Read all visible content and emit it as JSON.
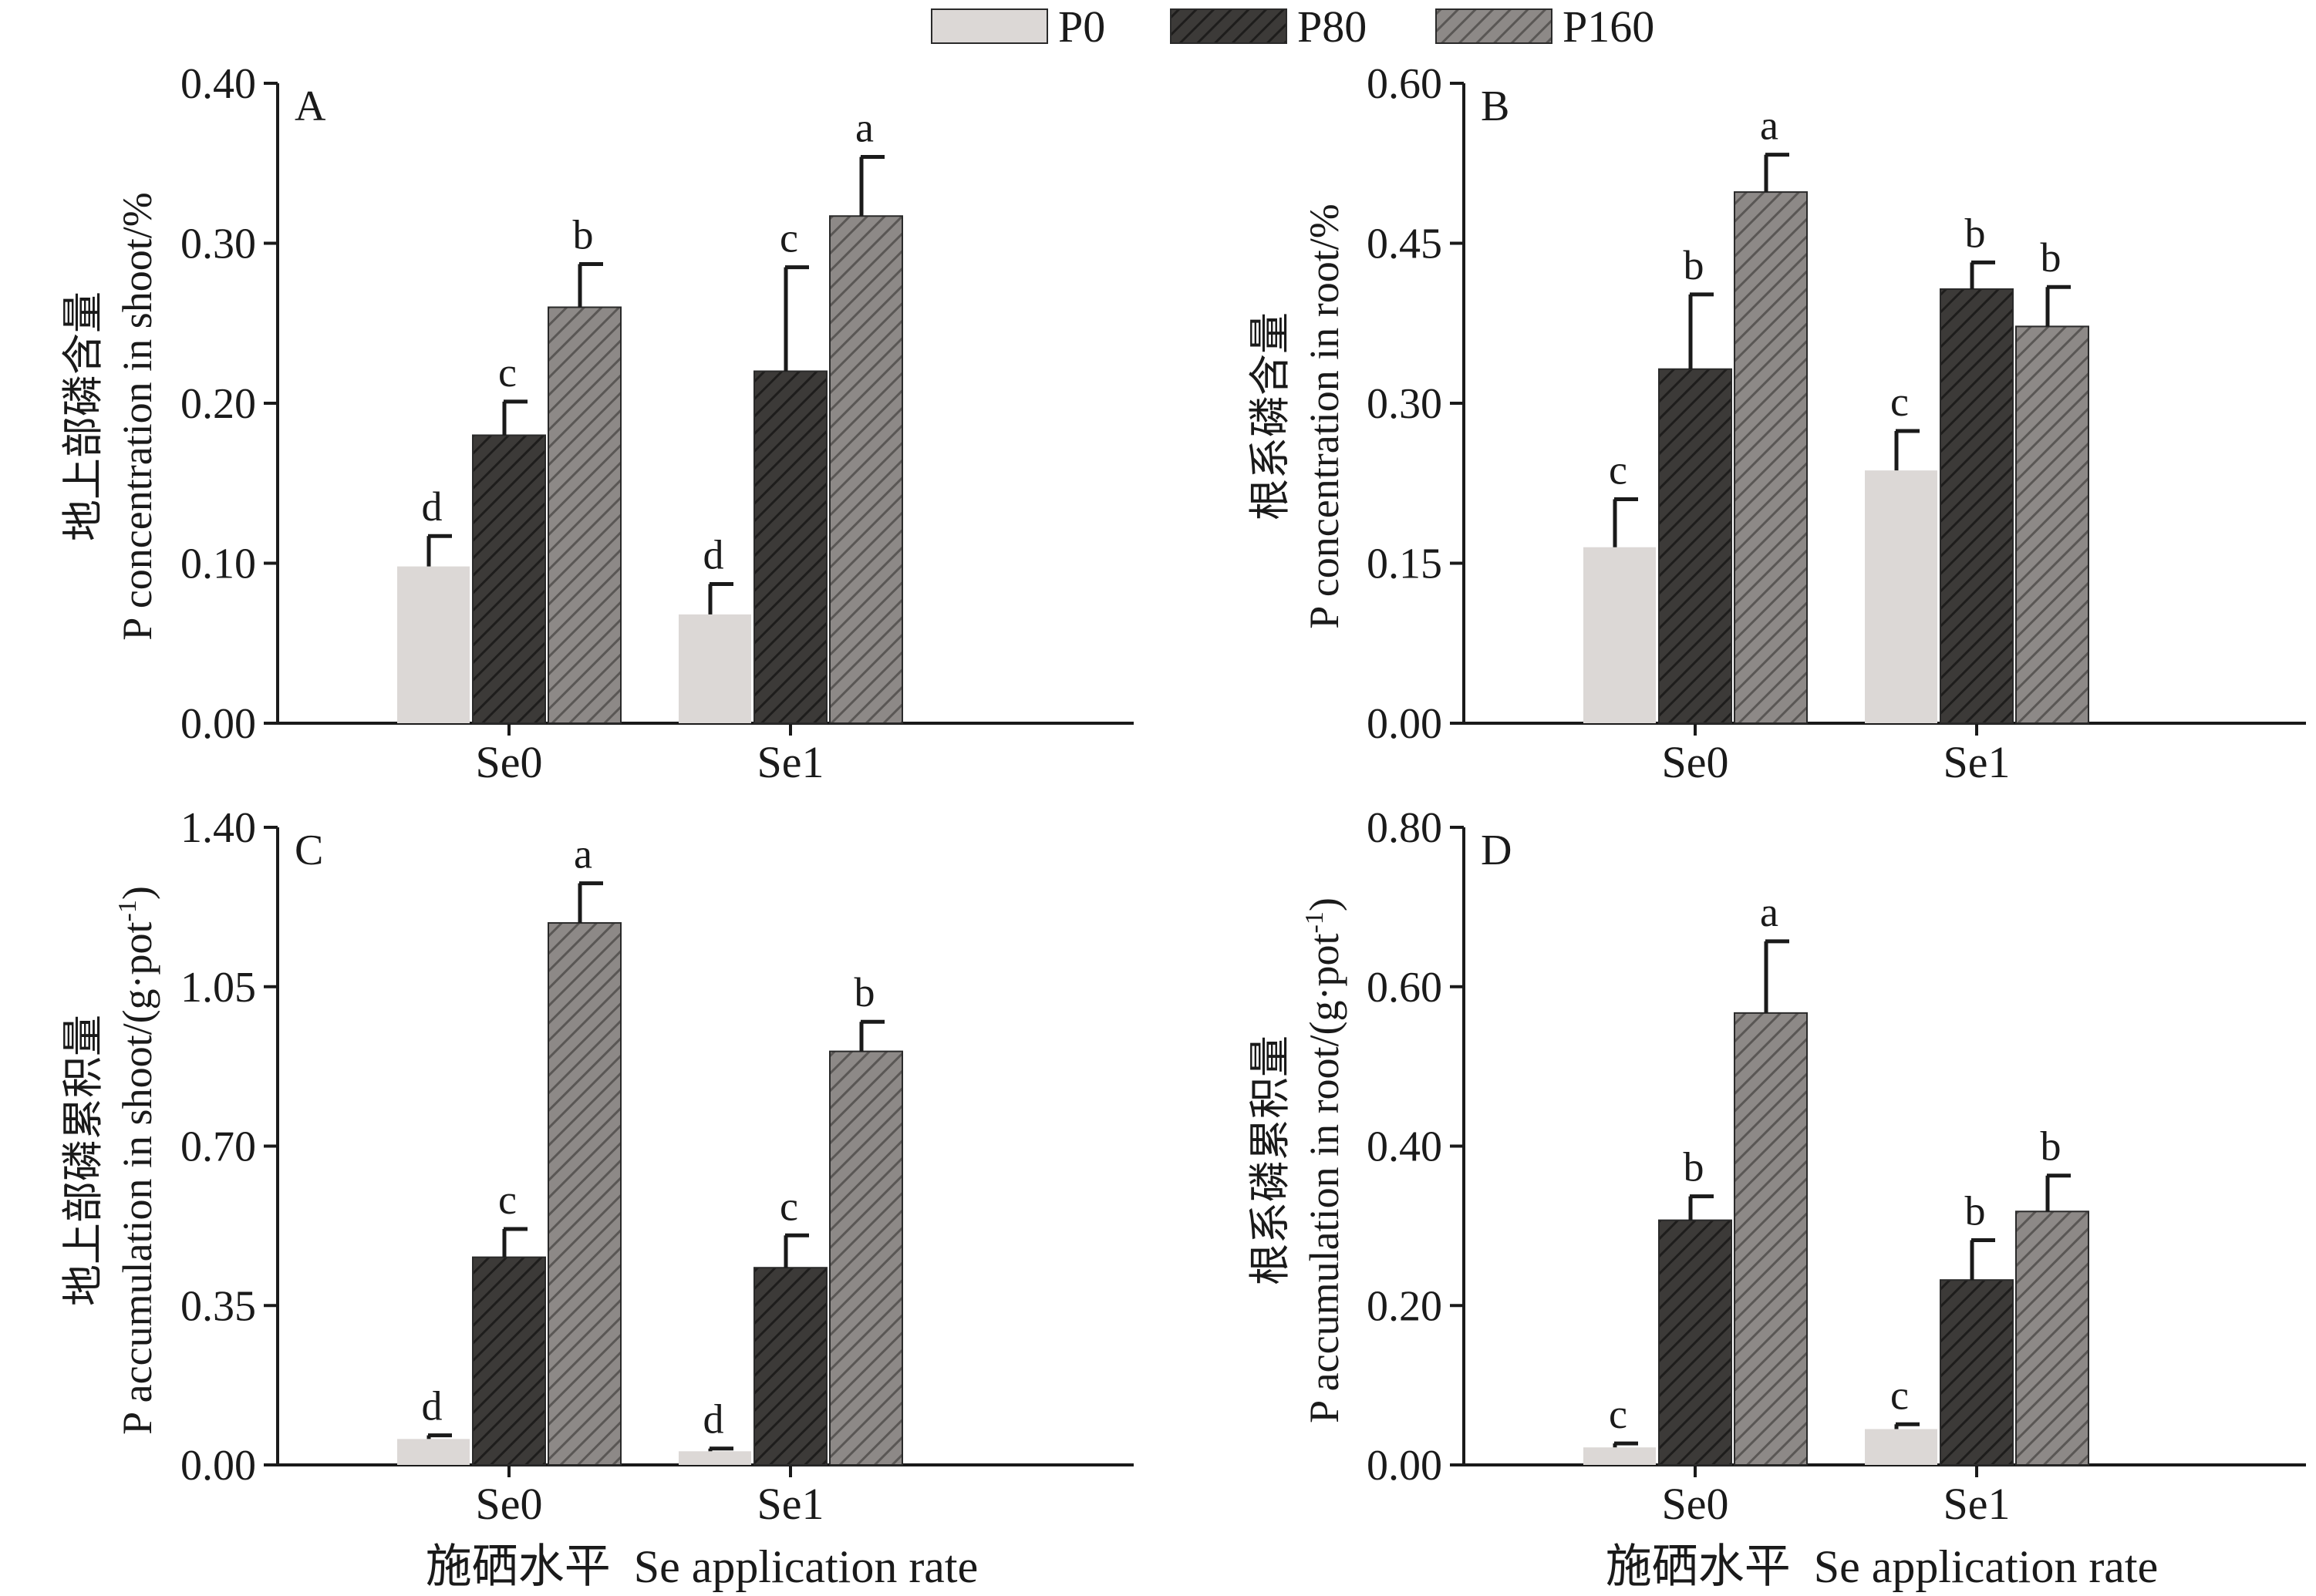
{
  "legend": {
    "entries": [
      {
        "label": "P0",
        "key": "P0"
      },
      {
        "label": "P80",
        "key": "P80"
      },
      {
        "label": "P160",
        "key": "P160"
      }
    ]
  },
  "series_style": {
    "P0": {
      "fill": "#dcd8d6",
      "pattern": "none"
    },
    "P80": {
      "fill": "#3c3a38",
      "pattern": "hatch-dark"
    },
    "P160": {
      "fill": "#8d8987",
      "pattern": "hatch-mid"
    }
  },
  "x_axis_label": "施硒水平  Se application rate",
  "chart_data": [
    {
      "type": "bar",
      "panel": "A",
      "ylabel_cn": "地上部磷含量",
      "ylabel_en": "P concentration in shoot/%",
      "ylim": [
        0,
        0.4
      ],
      "yticks": [
        "0.00",
        "0.10",
        "0.20",
        "0.30",
        "0.40"
      ],
      "categories": [
        "Se0",
        "Se1"
      ],
      "series": [
        {
          "name": "P0",
          "values": [
            0.098,
            0.068
          ],
          "errors": [
            0.019,
            0.019
          ],
          "letters": [
            "d",
            "d"
          ]
        },
        {
          "name": "P80",
          "values": [
            0.18,
            0.22
          ],
          "errors": [
            0.021,
            0.065
          ],
          "letters": [
            "c",
            "c"
          ]
        },
        {
          "name": "P160",
          "values": [
            0.26,
            0.317
          ],
          "errors": [
            0.027,
            0.037
          ],
          "letters": [
            "b",
            "a"
          ]
        }
      ]
    },
    {
      "type": "bar",
      "panel": "B",
      "ylabel_cn": "根系磷含量",
      "ylabel_en": "P concentration in root/%",
      "ylim": [
        0,
        0.6
      ],
      "yticks": [
        "0.00",
        "0.15",
        "0.30",
        "0.45",
        "0.60"
      ],
      "categories": [
        "Se0",
        "Se1"
      ],
      "series": [
        {
          "name": "P0",
          "values": [
            0.165,
            0.237
          ],
          "errors": [
            0.045,
            0.037
          ],
          "letters": [
            "c",
            "c"
          ]
        },
        {
          "name": "P80",
          "values": [
            0.332,
            0.407
          ],
          "errors": [
            0.07,
            0.025
          ],
          "letters": [
            "b",
            "b"
          ]
        },
        {
          "name": "P160",
          "values": [
            0.498,
            0.372
          ],
          "errors": [
            0.035,
            0.037
          ],
          "letters": [
            "a",
            "b"
          ]
        }
      ]
    },
    {
      "type": "bar",
      "panel": "C",
      "ylabel_cn": "地上部磷累积量",
      "ylabel_en": "P accumulation in shoot/(g·pot-1)",
      "ylabel_en_main": "P accumulation in shoot/(g·pot",
      "ylabel_en_sup": "-1",
      "ylabel_en_tail": ")",
      "ylim": [
        0,
        1.4
      ],
      "yticks": [
        "0.00",
        "0.35",
        "0.70",
        "1.05",
        "1.40"
      ],
      "categories": [
        "Se0",
        "Se1"
      ],
      "series": [
        {
          "name": "P0",
          "values": [
            0.057,
            0.03
          ],
          "errors": [
            0.008,
            0.006
          ],
          "letters": [
            "d",
            "d"
          ]
        },
        {
          "name": "P80",
          "values": [
            0.456,
            0.433
          ],
          "errors": [
            0.062,
            0.071
          ],
          "letters": [
            "c",
            "c"
          ]
        },
        {
          "name": "P160",
          "values": [
            1.19,
            0.908
          ],
          "errors": [
            0.087,
            0.065
          ],
          "letters": [
            "a",
            "b"
          ]
        }
      ]
    },
    {
      "type": "bar",
      "panel": "D",
      "ylabel_cn": "根系磷累积量",
      "ylabel_en": "P accumulation in root/(g·pot-1)",
      "ylabel_en_main": "P accumulation in root/(g·pot",
      "ylabel_en_sup": "-1",
      "ylabel_en_tail": ")",
      "ylim": [
        0,
        0.8
      ],
      "yticks": [
        "0.00",
        "0.20",
        "0.40",
        "0.60",
        "0.80"
      ],
      "categories": [
        "Se0",
        "Se1"
      ],
      "series": [
        {
          "name": "P0",
          "values": [
            0.022,
            0.045
          ],
          "errors": [
            0.005,
            0.006
          ],
          "letters": [
            "c",
            "c"
          ]
        },
        {
          "name": "P80",
          "values": [
            0.307,
            0.232
          ],
          "errors": [
            0.03,
            0.05
          ],
          "letters": [
            "b",
            "b"
          ]
        },
        {
          "name": "P160",
          "values": [
            0.567,
            0.318
          ],
          "errors": [
            0.09,
            0.045
          ],
          "letters": [
            "a",
            "b"
          ]
        }
      ]
    }
  ]
}
